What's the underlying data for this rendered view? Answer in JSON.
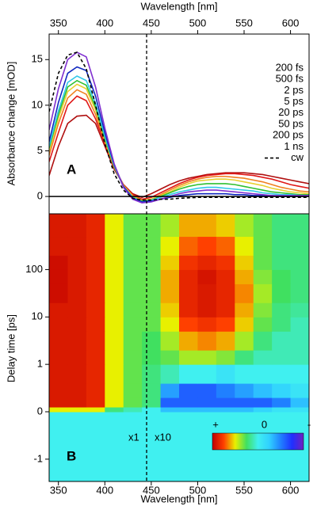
{
  "chart_data": [
    {
      "type": "line",
      "xlabel": "Wavelength [nm]",
      "ylabel": "Absorbance change [mOD]",
      "panel_label": "A",
      "legend": "upper right",
      "xlim": [
        340,
        620
      ],
      "xticks": [
        350,
        400,
        450,
        500,
        550,
        600
      ],
      "ylim": [
        -1.9,
        17.8
      ],
      "yticks": [
        0,
        5,
        10,
        15
      ],
      "x": [
        340,
        350,
        360,
        370,
        380,
        390,
        400,
        410,
        420,
        430,
        440,
        450,
        460,
        470,
        480,
        490,
        500,
        510,
        520,
        530,
        540,
        550,
        560,
        570,
        580,
        590,
        600,
        610,
        620
      ],
      "series": [
        {
          "name": "200 fs",
          "color": "#b01010",
          "values": [
            2.3,
            5.5,
            8,
            8.8,
            8.9,
            8.0,
            5.5,
            3.0,
            1.3,
            0.3,
            -0.1,
            0.3,
            0.8,
            1.3,
            1.7,
            2.0,
            2.2,
            2.4,
            2.5,
            2.6,
            2.6,
            2.6,
            2.5,
            2.4,
            2.2,
            2.0,
            1.8,
            1.6,
            1.4
          ]
        },
        {
          "name": "500 fs",
          "color": "#e01818",
          "values": [
            3.8,
            7,
            10,
            11,
            10.5,
            8.5,
            5.8,
            3.2,
            1.3,
            0.2,
            -0.3,
            -0.1,
            0.4,
            0.9,
            1.4,
            1.8,
            2.1,
            2.3,
            2.4,
            2.5,
            2.5,
            2.4,
            2.3,
            2.1,
            1.9,
            1.6,
            1.3,
            1.1,
            0.9
          ]
        },
        {
          "name": "2 ps",
          "color": "#f08020",
          "values": [
            4.5,
            8,
            10.8,
            11.7,
            11.2,
            9,
            6,
            3.2,
            1.2,
            0.1,
            -0.4,
            -0.3,
            0.2,
            0.7,
            1.2,
            1.6,
            1.9,
            2.1,
            2.2,
            2.2,
            2.1,
            2.0,
            1.8,
            1.6,
            1.3,
            1.0,
            0.8,
            0.6,
            0.5
          ]
        },
        {
          "name": "5 ps",
          "color": "#e8d030",
          "values": [
            5,
            8.6,
            11.5,
            12.3,
            11.8,
            9.5,
            6.2,
            3.3,
            1.2,
            0.0,
            -0.5,
            -0.3,
            0.1,
            0.5,
            1.0,
            1.4,
            1.7,
            1.8,
            1.9,
            1.9,
            1.8,
            1.6,
            1.4,
            1.2,
            0.9,
            0.7,
            0.5,
            0.4,
            0.3
          ]
        },
        {
          "name": "20 ps",
          "color": "#30c030",
          "values": [
            5.3,
            9,
            12,
            12.7,
            12.2,
            9.8,
            6.4,
            3.3,
            1.1,
            -0.1,
            -0.5,
            -0.4,
            0,
            0.4,
            0.8,
            1.1,
            1.3,
            1.4,
            1.4,
            1.4,
            1.3,
            1.1,
            0.9,
            0.7,
            0.5,
            0.4,
            0.3,
            0.2,
            0.2
          ]
        },
        {
          "name": "50 ps",
          "color": "#30c8e8",
          "values": [
            5.5,
            9.4,
            12.5,
            13.2,
            12.7,
            10.2,
            6.6,
            3.4,
            1.1,
            -0.1,
            -0.6,
            -0.4,
            -0.1,
            0.2,
            0.5,
            0.7,
            0.9,
            1.0,
            1.0,
            0.9,
            0.8,
            0.7,
            0.6,
            0.4,
            0.3,
            0.2,
            0.2,
            0.1,
            0.1
          ]
        },
        {
          "name": "200 ps",
          "color": "#1028c0",
          "values": [
            6,
            10.3,
            13.5,
            14.2,
            13.8,
            11,
            7,
            3.5,
            1.1,
            -0.2,
            -0.6,
            -0.5,
            -0.3,
            -0.1,
            0.1,
            0.2,
            0.3,
            0.3,
            0.3,
            0.3,
            0.2,
            0.2,
            0.1,
            0.1,
            0.1,
            0,
            0,
            0,
            0
          ]
        },
        {
          "name": "1 ns",
          "color": "#8030d0",
          "values": [
            7.3,
            11.8,
            15,
            15.8,
            15.3,
            12,
            7.5,
            3.6,
            1.0,
            -0.3,
            -0.7,
            -0.6,
            -0.3,
            0,
            0.3,
            0.5,
            0.6,
            0.7,
            0.7,
            0.6,
            0.5,
            0.4,
            0.3,
            0.2,
            0.1,
            0.1,
            0.1,
            0.1,
            0.1
          ]
        },
        {
          "name": "cw",
          "color": "#000000",
          "dash": true,
          "values": [
            9.3,
            13.5,
            15.5,
            15.8,
            14,
            10,
            5.8,
            2.5,
            0.7,
            -0.2,
            -0.4,
            -0.4,
            -0.3,
            -0.3,
            -0.2,
            -0.15,
            -0.1,
            -0.1,
            -0.1,
            -0.1,
            -0.1,
            -0.1,
            -0.1,
            -0.1,
            -0.1,
            -0.1,
            -0.1,
            -0.1,
            -0.1
          ]
        }
      ]
    },
    {
      "type": "heatmap",
      "xlabel": "Wavelength [nm]",
      "ylabel": "Delay time [ps]",
      "panel_label": "B",
      "annotations": [
        "x1",
        "x10"
      ],
      "vline": 445,
      "xlim": [
        340,
        620
      ],
      "xticks": [
        350,
        400,
        450,
        500,
        550,
        600
      ],
      "ylim": [
        -1.47,
        1500
      ],
      "yticks": [
        -1,
        0,
        1,
        10,
        100
      ],
      "yscale": "lin-log",
      "linthresh": 1,
      "xbins": [
        340,
        360,
        380,
        400,
        420,
        440,
        460,
        480,
        500,
        520,
        540,
        560,
        580,
        600,
        620
      ],
      "ybins": [
        -1.47,
        -0.5,
        0,
        0.1,
        0.3,
        0.6,
        1,
        2,
        5,
        10,
        20,
        50,
        100,
        200,
        500,
        1500
      ],
      "zlim": [
        -1,
        1
      ],
      "colorscale": [
        "#7020c0",
        "#2030ff",
        "#2080ff",
        "#30d0ff",
        "#40f0f0",
        "#40e060",
        "#e8f000",
        "#ff4000",
        "#c00000"
      ],
      "colorbar_labels": [
        "+",
        "0",
        "-"
      ],
      "z": [
        [
          0,
          0,
          0,
          0,
          0,
          0,
          0,
          0,
          0,
          0,
          0,
          0,
          0,
          0
        ],
        [
          0,
          0,
          0,
          0,
          0,
          0,
          0,
          0,
          0,
          0,
          0,
          0,
          0,
          0
        ],
        [
          0.5,
          0.5,
          0.5,
          0.2,
          0.1,
          0,
          -0.3,
          -0.3,
          -0.3,
          -0.3,
          -0.3,
          -0.2,
          -0.1,
          -0.1
        ],
        [
          0.9,
          0.9,
          0.85,
          0.5,
          0.3,
          0.2,
          -0.6,
          -0.6,
          -0.6,
          -0.6,
          -0.6,
          -0.6,
          -0.5,
          -0.3
        ],
        [
          0.9,
          0.9,
          0.85,
          0.5,
          0.3,
          0.2,
          -0.4,
          -0.6,
          -0.6,
          -0.5,
          -0.4,
          -0.3,
          -0.2,
          -0.1
        ],
        [
          0.9,
          0.9,
          0.85,
          0.5,
          0.3,
          0.2,
          0.1,
          0,
          0,
          -0.1,
          0,
          0,
          0,
          0
        ],
        [
          0.9,
          0.9,
          0.85,
          0.5,
          0.3,
          0.25,
          0.3,
          0.4,
          0.4,
          0.35,
          0.2,
          0.1,
          0.1,
          0.1
        ],
        [
          0.9,
          0.9,
          0.85,
          0.5,
          0.3,
          0.25,
          0.4,
          0.6,
          0.65,
          0.6,
          0.4,
          0.2,
          0.1,
          0.1
        ],
        [
          0.9,
          0.9,
          0.85,
          0.5,
          0.3,
          0.3,
          0.5,
          0.75,
          0.8,
          0.75,
          0.55,
          0.3,
          0.2,
          0.1
        ],
        [
          0.9,
          0.9,
          0.85,
          0.5,
          0.3,
          0.3,
          0.55,
          0.85,
          0.9,
          0.85,
          0.6,
          0.35,
          0.2,
          0.15
        ],
        [
          0.95,
          0.9,
          0.85,
          0.5,
          0.3,
          0.3,
          0.6,
          0.85,
          0.9,
          0.85,
          0.65,
          0.4,
          0.25,
          0.2
        ],
        [
          0.95,
          0.9,
          0.85,
          0.5,
          0.3,
          0.3,
          0.6,
          0.85,
          0.92,
          0.85,
          0.6,
          0.35,
          0.25,
          0.2
        ],
        [
          0.95,
          0.9,
          0.85,
          0.5,
          0.3,
          0.3,
          0.55,
          0.8,
          0.85,
          0.8,
          0.55,
          0.3,
          0.2,
          0.2
        ],
        [
          0.9,
          0.9,
          0.85,
          0.5,
          0.3,
          0.3,
          0.5,
          0.7,
          0.75,
          0.7,
          0.5,
          0.3,
          0.2,
          0.2
        ],
        [
          0.9,
          0.9,
          0.85,
          0.5,
          0.3,
          0.3,
          0.4,
          0.6,
          0.6,
          0.55,
          0.4,
          0.3,
          0.2,
          0.2
        ]
      ]
    }
  ]
}
